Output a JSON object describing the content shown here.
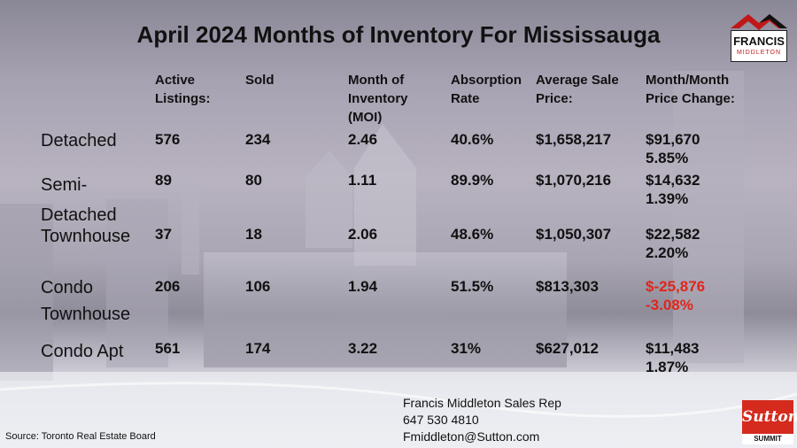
{
  "title": "April 2024 Months of Inventory For Mississauga",
  "headers": {
    "active": "Active\nListings:",
    "sold": "Sold",
    "moi": "Month of\nInventory\n(MOI)",
    "absorption": "Absorption\nRate",
    "avg_price": "Average Sale\nPrice:",
    "change": "Month/Month\nPrice Change:"
  },
  "rows": [
    {
      "label": "Detached",
      "active": "576",
      "sold": "234",
      "moi": "2.46",
      "absorption": "40.6%",
      "avg_price": "$1,658,217",
      "change": "$91,670\n5.85%",
      "negative": false
    },
    {
      "label": "Semi-\nDetached",
      "active": "89",
      "sold": "80",
      "moi": "1.11",
      "absorption": "89.9%",
      "avg_price": "$1,070,216",
      "change": "$14,632\n1.39%",
      "negative": false
    },
    {
      "label": "Townhouse",
      "active": "37",
      "sold": "18",
      "moi": "2.06",
      "absorption": "48.6%",
      "avg_price": "$1,050,307",
      "change": "$22,582\n2.20%",
      "negative": false
    },
    {
      "label": "Condo\nTownhouse",
      "active": "206",
      "sold": "106",
      "moi": "1.94",
      "absorption": "51.5%",
      "avg_price": "$813,303",
      "change": "$-25,876\n-3.08%",
      "negative": true
    },
    {
      "label": "Condo Apt",
      "active": "561",
      "sold": "174",
      "moi": "3.22",
      "absorption": "31%",
      "avg_price": "$627,012",
      "change": "$11,483\n1.87%",
      "negative": false
    }
  ],
  "logo": {
    "line1": "FRANCIS",
    "line2": "MIDDLETON"
  },
  "contact": {
    "name": "Francis Middleton Sales Rep",
    "phone": "647 530 4810",
    "email": "Fmiddleton@Sutton.com"
  },
  "source": "Source: Toronto Real Estate Board",
  "brokerage": {
    "name": "Sutton",
    "sub": "SUMMIT"
  },
  "colors": {
    "negative": "#e0261a",
    "brand_red": "#d42b1e"
  }
}
